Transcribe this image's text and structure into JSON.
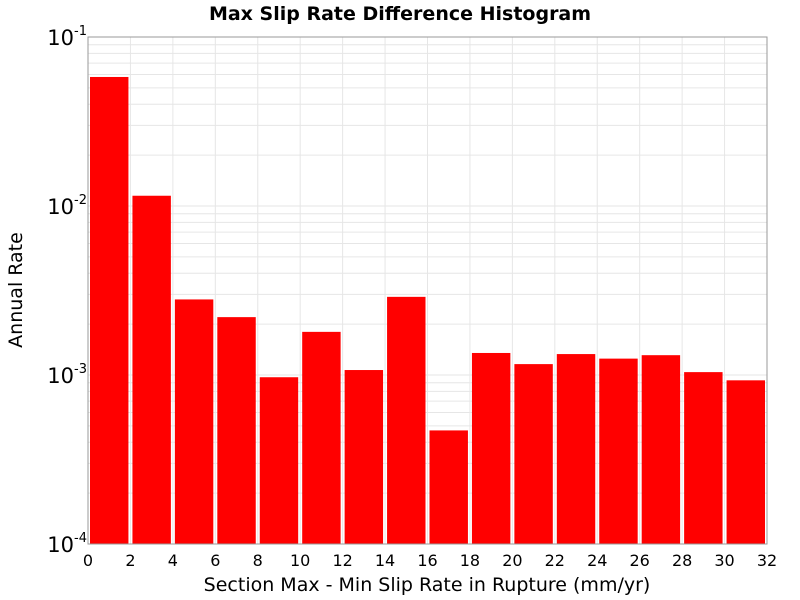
{
  "chart_data": {
    "type": "bar",
    "title": "Max Slip Rate Difference Histogram",
    "xlabel": "Section Max - Min Slip Rate in Rupture (mm/yr)",
    "ylabel": "Annual Rate",
    "y_scale": "log",
    "xlim": [
      0,
      32
    ],
    "ylim": [
      0.0001,
      0.1
    ],
    "bin_width": 2,
    "grid": true,
    "x": [
      1,
      3,
      5,
      7,
      9,
      11,
      13,
      15,
      17,
      19,
      21,
      23,
      25,
      27,
      29,
      31
    ],
    "values": [
      0.058,
      0.0115,
      0.0028,
      0.0022,
      0.00097,
      0.0018,
      0.00107,
      0.0029,
      0.00047,
      0.00135,
      0.00116,
      0.00133,
      0.00125,
      0.00131,
      0.00104,
      0.00093
    ],
    "x_ticks": [
      "0",
      "2",
      "4",
      "6",
      "8",
      "10",
      "12",
      "14",
      "16",
      "18",
      "20",
      "22",
      "24",
      "26",
      "28",
      "30",
      "32"
    ],
    "y_ticks": [
      {
        "base": "10",
        "exp": "-1"
      },
      {
        "base": "10",
        "exp": "-2"
      },
      {
        "base": "10",
        "exp": "-3"
      },
      {
        "base": "10",
        "exp": "-4"
      }
    ],
    "colors": {
      "bar": "#ff0000",
      "grid": "#e6e6e6",
      "frame": "#999999"
    }
  }
}
